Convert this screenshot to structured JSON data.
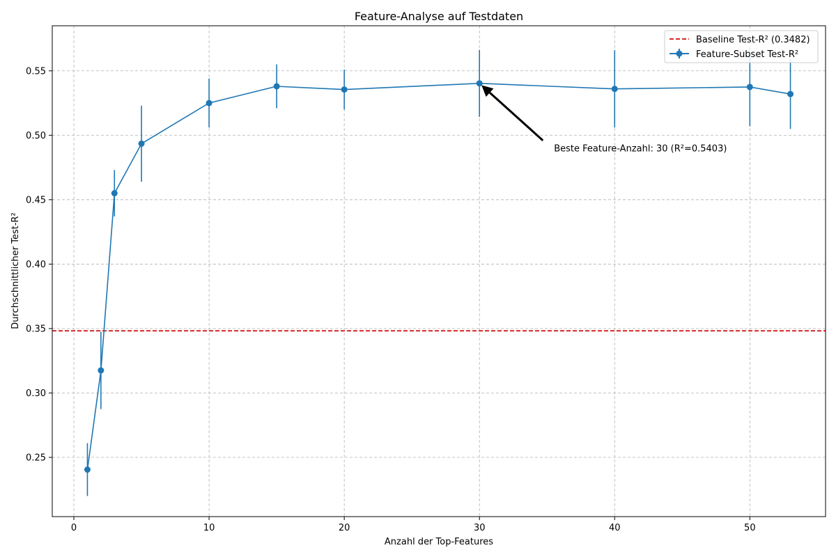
{
  "chart_data": {
    "type": "line",
    "title": "Feature-Analyse auf Testdaten",
    "xlabel": "Anzahl der Top-Features",
    "ylabel": "Durchschnittlicher Test-R²",
    "xlim": [
      -1.6,
      55.6
    ],
    "ylim": [
      0.204,
      0.585
    ],
    "xticks": [
      0,
      10,
      20,
      30,
      40,
      50
    ],
    "yticks": [
      0.25,
      0.3,
      0.35,
      0.4,
      0.45,
      0.5,
      0.55
    ],
    "ytick_labels": [
      "0.25",
      "0.30",
      "0.35",
      "0.40",
      "0.45",
      "0.50",
      "0.55"
    ],
    "grid": true,
    "legend_position": "top-right",
    "baseline": {
      "name": "Baseline Test-R² (0.3482)",
      "value": 0.3482,
      "color": "#d62728",
      "style": "dashed"
    },
    "series": [
      {
        "name": "Feature-Subset Test-R²",
        "color": "#1f77b4",
        "x": [
          1,
          2,
          3,
          5,
          10,
          15,
          20,
          30,
          40,
          50,
          53
        ],
        "y": [
          0.2405,
          0.3175,
          0.455,
          0.4935,
          0.525,
          0.538,
          0.5355,
          0.5403,
          0.536,
          0.5375,
          0.532
        ],
        "yerr": [
          0.0205,
          0.03,
          0.018,
          0.0295,
          0.019,
          0.017,
          0.0155,
          0.026,
          0.03,
          0.0305,
          0.027
        ]
      }
    ],
    "annotation": {
      "text": "Beste Feature-Anzahl: 30 (R²=0.5403)",
      "point": [
        30,
        0.5403
      ],
      "text_pos": [
        35,
        0.4895
      ],
      "color": "#000000"
    }
  }
}
